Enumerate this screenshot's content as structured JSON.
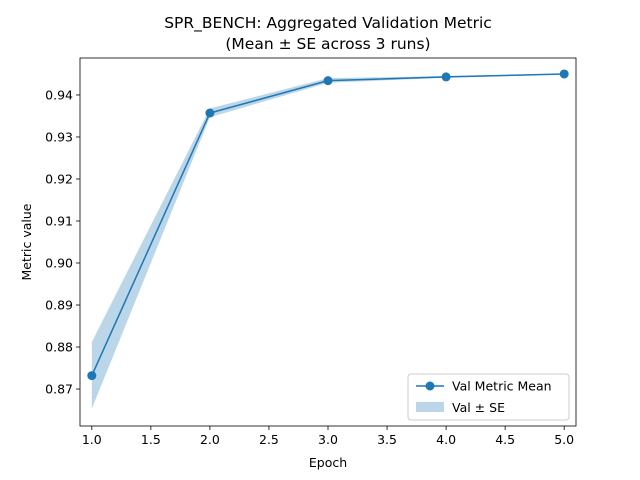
{
  "chart_data": {
    "type": "line",
    "title": "SPR_BENCH: Aggregated Validation Metric",
    "subtitle": "(Mean ± SE across 3 runs)",
    "xlabel": "Epoch",
    "ylabel": "Metric value",
    "x": [
      1,
      2,
      3,
      4,
      5
    ],
    "xlim": [
      0.9,
      5.1
    ],
    "ylim": [
      0.8612,
      0.9488
    ],
    "x_ticks": [
      1.0,
      1.5,
      2.0,
      2.5,
      3.0,
      3.5,
      4.0,
      4.5,
      5.0
    ],
    "x_tick_labels": [
      "1.0",
      "1.5",
      "2.0",
      "2.5",
      "3.0",
      "3.5",
      "4.0",
      "4.5",
      "5.0"
    ],
    "y_ticks": [
      0.87,
      0.88,
      0.89,
      0.9,
      0.91,
      0.92,
      0.93,
      0.94
    ],
    "y_tick_labels": [
      "0.87",
      "0.88",
      "0.89",
      "0.90",
      "0.91",
      "0.92",
      "0.93",
      "0.94"
    ],
    "series": [
      {
        "name": "Val Metric Mean",
        "kind": "line-marker",
        "values": [
          0.8732,
          0.9357,
          0.9434,
          0.9443,
          0.945
        ],
        "color": "#1f77b4"
      }
    ],
    "band": {
      "name": "Val ± SE",
      "lower": [
        0.8653,
        0.9347,
        0.9429,
        0.9441,
        0.9449
      ],
      "upper": [
        0.8812,
        0.9368,
        0.944,
        0.9445,
        0.9451
      ],
      "color": "#1f77b4",
      "opacity": 0.3
    },
    "legend_position": "lower-right",
    "grid": false
  }
}
